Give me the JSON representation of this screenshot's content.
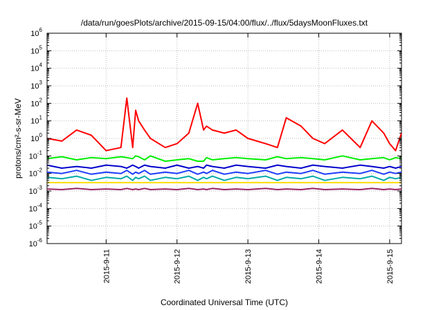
{
  "chart_data": {
    "type": "line",
    "title": "/data/run/goesPlots/archive/2015-09-15/04:00/flux/../flux/5daysMoonFluxes.txt",
    "xlabel": "Coordinated Universal Time (UTC)",
    "ylabel": "protons/cm²-s-sr-MeV",
    "yscale": "log",
    "ylim": [
      1e-06,
      1000000.0
    ],
    "xlim": [
      "2015-09-10 04:00",
      "2015-09-15 04:00"
    ],
    "grid": true,
    "legend": "none",
    "x_ticks": [
      "2015-9-11",
      "2015-9-12",
      "2015-9-13",
      "2015-9-14",
      "2015-9-15"
    ],
    "x": [
      "2015-09-10 04:00",
      "2015-09-10 09:00",
      "2015-09-10 14:00",
      "2015-09-10 19:00",
      "2015-09-11 00:00",
      "2015-09-11 05:00",
      "2015-09-11 07:00",
      "2015-09-11 09:00",
      "2015-09-11 10:00",
      "2015-09-11 11:00",
      "2015-09-11 13:00",
      "2015-09-11 15:00",
      "2015-09-11 20:00",
      "2015-09-12 00:00",
      "2015-09-12 04:00",
      "2015-09-12 07:00",
      "2015-09-12 09:00",
      "2015-09-12 10:00",
      "2015-09-12 12:00",
      "2015-09-12 16:00",
      "2015-09-12 20:00",
      "2015-09-13 00:00",
      "2015-09-13 06:00",
      "2015-09-13 10:00",
      "2015-09-13 13:00",
      "2015-09-13 18:00",
      "2015-09-13 22:00",
      "2015-09-14 02:00",
      "2015-09-14 08:00",
      "2015-09-14 14:00",
      "2015-09-14 18:00",
      "2015-09-14 22:00",
      "2015-09-15 00:00",
      "2015-09-15 02:00",
      "2015-09-15 04:00"
    ],
    "series": [
      {
        "color": "#ff0000",
        "values": [
          1.0,
          0.7,
          3.0,
          1.5,
          0.2,
          0.3,
          200,
          0.3,
          40,
          10,
          3,
          1.0,
          0.3,
          0.5,
          2,
          100,
          3,
          5,
          3,
          2,
          3,
          1.0,
          0.5,
          0.3,
          15,
          5,
          1.0,
          0.5,
          3,
          0.3,
          10,
          2,
          0.5,
          0.2,
          2
        ]
      },
      {
        "color": "#00ee00",
        "values": [
          0.07,
          0.09,
          0.06,
          0.08,
          0.07,
          0.09,
          0.08,
          0.07,
          0.1,
          0.09,
          0.06,
          0.1,
          0.05,
          0.06,
          0.07,
          0.05,
          0.05,
          0.08,
          0.06,
          0.07,
          0.08,
          0.07,
          0.06,
          0.09,
          0.07,
          0.08,
          0.07,
          0.06,
          0.1,
          0.06,
          0.07,
          0.08,
          0.06,
          0.08,
          0.07
        ]
      },
      {
        "color": "#0000cc",
        "values": [
          0.03,
          0.02,
          0.025,
          0.02,
          0.03,
          0.025,
          0.02,
          0.03,
          0.025,
          0.02,
          0.03,
          0.025,
          0.02,
          0.03,
          0.02,
          0.025,
          0.02,
          0.03,
          0.025,
          0.02,
          0.03,
          0.025,
          0.02,
          0.03,
          0.025,
          0.02,
          0.03,
          0.025,
          0.02,
          0.03,
          0.025,
          0.02,
          0.025,
          0.02,
          0.025
        ]
      },
      {
        "color": "#1e3cff",
        "values": [
          0.012,
          0.01,
          0.015,
          0.009,
          0.012,
          0.01,
          0.015,
          0.009,
          0.012,
          0.01,
          0.015,
          0.009,
          0.012,
          0.01,
          0.015,
          0.009,
          0.012,
          0.01,
          0.015,
          0.009,
          0.012,
          0.01,
          0.015,
          0.009,
          0.012,
          0.01,
          0.015,
          0.009,
          0.012,
          0.01,
          0.015,
          0.009,
          0.012,
          0.01,
          0.012
        ]
      },
      {
        "color": "#00aaaa",
        "values": [
          0.006,
          0.005,
          0.007,
          0.004,
          0.006,
          0.005,
          0.007,
          0.004,
          0.006,
          0.005,
          0.007,
          0.004,
          0.006,
          0.005,
          0.007,
          0.004,
          0.006,
          0.005,
          0.007,
          0.004,
          0.006,
          0.005,
          0.007,
          0.004,
          0.006,
          0.005,
          0.007,
          0.004,
          0.006,
          0.005,
          0.007,
          0.004,
          0.006,
          0.005,
          0.006
        ]
      },
      {
        "color": "#ffdd00",
        "values": [
          0.003,
          0.003,
          0.003,
          0.003,
          0.003,
          0.003,
          0.003,
          0.003,
          0.003,
          0.003,
          0.003,
          0.003,
          0.003,
          0.003,
          0.003,
          0.003,
          0.003,
          0.003,
          0.003,
          0.003,
          0.003,
          0.003,
          0.003,
          0.003,
          0.003,
          0.003,
          0.003,
          0.003,
          0.003,
          0.003,
          0.003,
          0.003,
          0.003,
          0.003,
          0.003
        ]
      },
      {
        "color": "#992266",
        "values": [
          0.0013,
          0.0012,
          0.0014,
          0.0012,
          0.0013,
          0.0012,
          0.0014,
          0.0012,
          0.0013,
          0.0012,
          0.0014,
          0.0012,
          0.0013,
          0.0012,
          0.0014,
          0.0012,
          0.0013,
          0.0012,
          0.0014,
          0.0012,
          0.0013,
          0.0012,
          0.0014,
          0.0012,
          0.0013,
          0.0012,
          0.0014,
          0.0012,
          0.0013,
          0.0012,
          0.0014,
          0.0012,
          0.0013,
          0.0012,
          0.0013
        ]
      }
    ]
  }
}
